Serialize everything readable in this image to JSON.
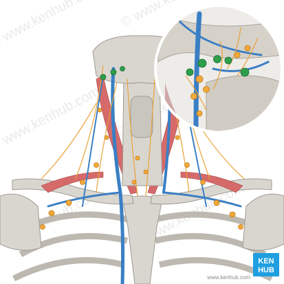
{
  "watermark": "© www.kenhub.com",
  "logo": {
    "line1": "KEN",
    "line2": "HUB"
  },
  "footer": "www.kenhub.com"
}
